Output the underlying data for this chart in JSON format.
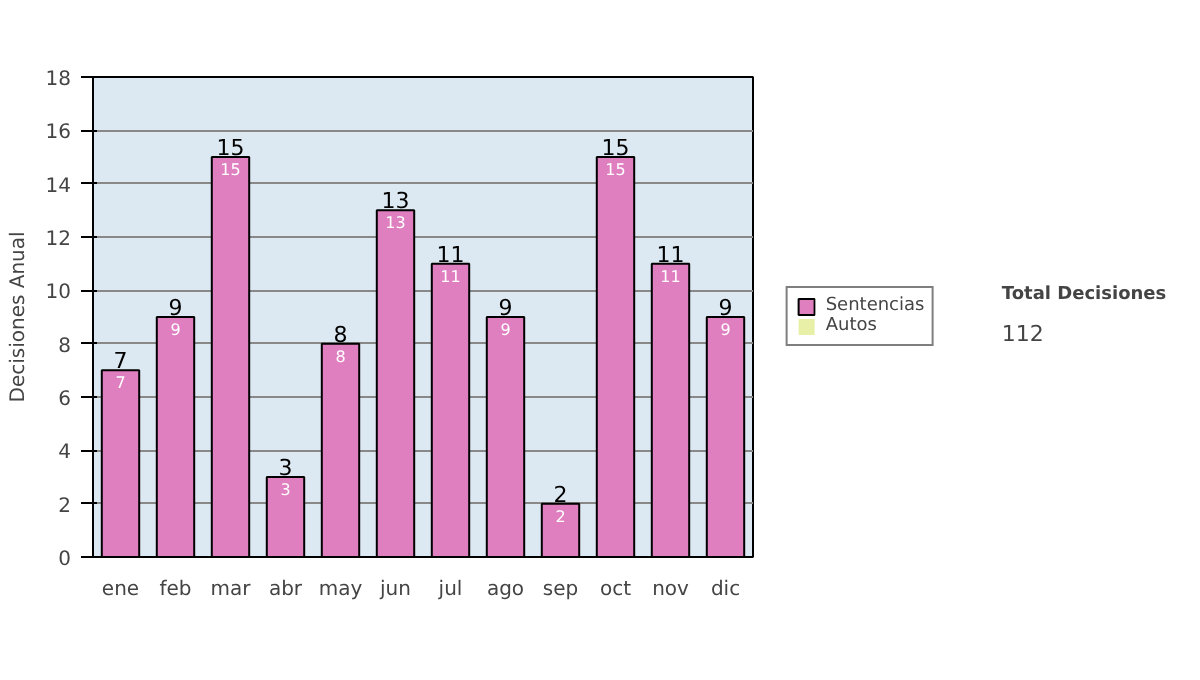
{
  "chart_data": {
    "type": "bar",
    "stacked": true,
    "ylabel": "Decisiones Anual",
    "categories": [
      "ene",
      "feb",
      "mar",
      "abr",
      "may",
      "jun",
      "jul",
      "ago",
      "sep",
      "oct",
      "nov",
      "dic"
    ],
    "series": [
      {
        "name": "Sentencias",
        "color": "#e07fc0",
        "values": [
          7,
          9,
          15,
          3,
          8,
          13,
          11,
          9,
          2,
          15,
          11,
          9
        ],
        "value_labels": [
          "7",
          "9",
          "15",
          "3",
          "8",
          "13",
          "11",
          "9",
          "2",
          "15",
          "11",
          "9"
        ]
      },
      {
        "name": "Autos",
        "color": "#e8f0a8",
        "values": [
          0,
          0,
          0,
          0,
          0,
          0,
          0,
          0,
          0,
          0,
          0,
          0
        ]
      }
    ],
    "totals": [
      "7",
      "9",
      "15",
      "3",
      "8",
      "13",
      "11",
      "9",
      "2",
      "15",
      "11",
      "9"
    ],
    "ylim": [
      0,
      18
    ],
    "yticks": [
      0,
      2,
      4,
      6,
      8,
      10,
      12,
      14,
      16,
      18
    ],
    "grid": "y",
    "legend": "right",
    "annotations": [
      "Total Decisiones",
      "112"
    ]
  }
}
